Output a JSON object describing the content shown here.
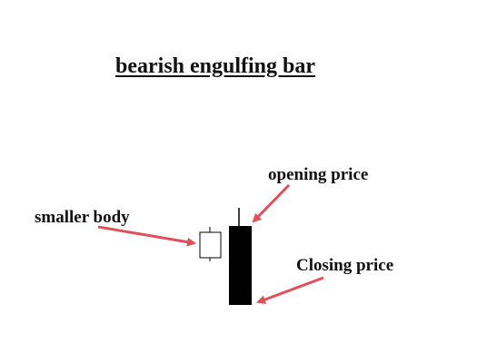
{
  "title": "bearish engulfing bar",
  "labels": {
    "smaller_body": "smaller body",
    "opening_price": "opening price",
    "closing_price": "Closing price"
  },
  "colors": {
    "arrow": "#e0505a",
    "bearish_candle": "#000000",
    "bullish_candle_border": "#000000",
    "bullish_candle_fill": "#ffffff",
    "text": "#111111"
  }
}
